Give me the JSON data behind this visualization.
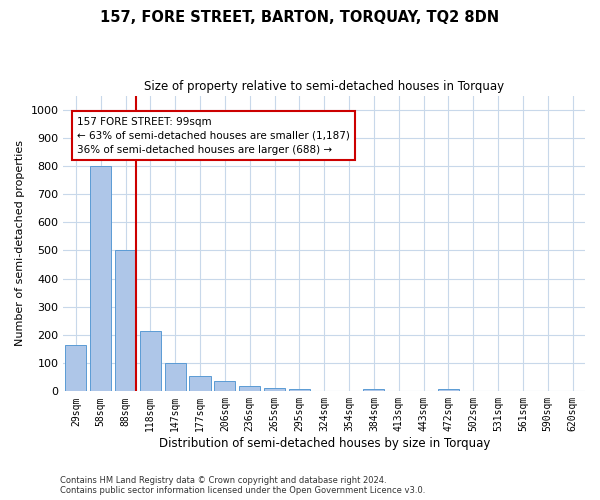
{
  "title": "157, FORE STREET, BARTON, TORQUAY, TQ2 8DN",
  "subtitle": "Size of property relative to semi-detached houses in Torquay",
  "xlabel": "Distribution of semi-detached houses by size in Torquay",
  "ylabel": "Number of semi-detached properties",
  "categories": [
    "29sqm",
    "58sqm",
    "88sqm",
    "118sqm",
    "147sqm",
    "177sqm",
    "206sqm",
    "236sqm",
    "265sqm",
    "295sqm",
    "324sqm",
    "354sqm",
    "384sqm",
    "413sqm",
    "443sqm",
    "472sqm",
    "502sqm",
    "531sqm",
    "561sqm",
    "590sqm",
    "620sqm"
  ],
  "values": [
    165,
    800,
    500,
    215,
    100,
    55,
    35,
    20,
    12,
    10,
    0,
    0,
    10,
    0,
    0,
    10,
    0,
    0,
    0,
    0,
    0
  ],
  "bar_color": "#aec6e8",
  "bar_edgecolor": "#5b9bd5",
  "annotation_text": "157 FORE STREET: 99sqm\n← 63% of semi-detached houses are smaller (1,187)\n36% of semi-detached houses are larger (688) →",
  "annotation_box_color": "#ffffff",
  "annotation_box_edgecolor": "#cc0000",
  "red_line_color": "#cc0000",
  "ylim": [
    0,
    1050
  ],
  "yticks": [
    0,
    100,
    200,
    300,
    400,
    500,
    600,
    700,
    800,
    900,
    1000
  ],
  "footer": "Contains HM Land Registry data © Crown copyright and database right 2024.\nContains public sector information licensed under the Open Government Licence v3.0.",
  "background_color": "#ffffff",
  "grid_color": "#c8d8ea"
}
